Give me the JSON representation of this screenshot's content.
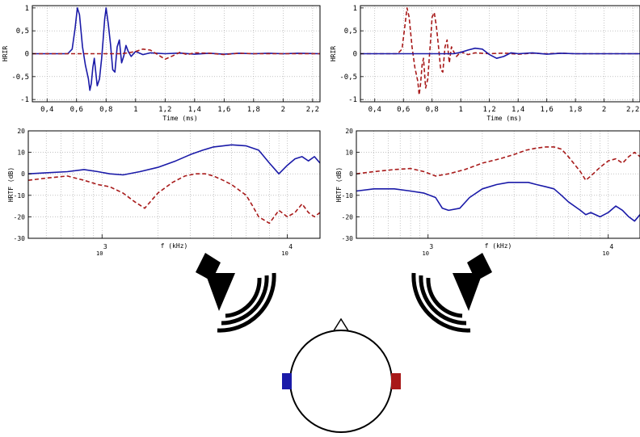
{
  "figure": {
    "colors": {
      "left_ear": "#1a1aa8",
      "right_ear": "#a81a1a",
      "axis": "#000000",
      "grid": "#a0a0a0"
    },
    "icons": [
      "speaker-left-icon",
      "speaker-right-icon",
      "sound-waves-icon",
      "head-icon",
      "nose-icon",
      "left-ear-marker",
      "right-ear-marker"
    ]
  },
  "chart_data": [
    {
      "id": "hrir-left-speaker",
      "type": "line",
      "xlabel": "Time (ms)",
      "ylabel": "HRIR",
      "xlim": [
        0.3,
        2.25
      ],
      "ylim": [
        -1.05,
        1.05
      ],
      "xticks": [
        "0,4",
        "0,6",
        "0,8",
        "1",
        "1,2",
        "1,4",
        "1,6",
        "1,8",
        "2",
        "2,2"
      ],
      "yticks": [
        "1",
        "0,5",
        "0",
        "-0,5",
        "-1"
      ],
      "grid": true,
      "series": [
        {
          "ear": "left",
          "color": "#1a1aa8",
          "dash": "none",
          "x": [
            0.3,
            0.54,
            0.57,
            0.59,
            0.605,
            0.62,
            0.64,
            0.66,
            0.68,
            0.69,
            0.7,
            0.71,
            0.72,
            0.74,
            0.755,
            0.77,
            0.78,
            0.79,
            0.8,
            0.815,
            0.83,
            0.845,
            0.86,
            0.875,
            0.89,
            0.905,
            0.92,
            0.935,
            0.95,
            0.97,
            1.0,
            1.05,
            1.1,
            1.2,
            1.3,
            1.4,
            1.5,
            1.6,
            1.7,
            1.8,
            1.9,
            2.0,
            2.1,
            2.25
          ],
          "y": [
            0,
            0,
            0.1,
            0.55,
            1.0,
            0.85,
            0.15,
            -0.25,
            -0.55,
            -0.8,
            -0.65,
            -0.3,
            -0.1,
            -0.7,
            -0.55,
            -0.1,
            0.3,
            0.75,
            1.0,
            0.65,
            0.2,
            -0.35,
            -0.4,
            0.15,
            0.3,
            -0.2,
            -0.05,
            0.18,
            0.05,
            -0.06,
            0.05,
            -0.02,
            0.02,
            0.0,
            0.015,
            -0.01,
            0.01,
            -0.01,
            0.01,
            0.0,
            0.01,
            0.0,
            0.01,
            0.0
          ]
        },
        {
          "ear": "right",
          "color": "#a81a1a",
          "dash": "dashed",
          "x": [
            0.3,
            0.9,
            0.95,
            1.0,
            1.05,
            1.1,
            1.15,
            1.2,
            1.25,
            1.3,
            1.35,
            1.4,
            1.5,
            1.6,
            1.7,
            1.8,
            2.0,
            2.25
          ],
          "y": [
            0,
            0,
            0.02,
            0.05,
            0.1,
            0.08,
            -0.02,
            -0.12,
            -0.05,
            0.03,
            -0.02,
            0.02,
            0.01,
            -0.02,
            0.01,
            0.0,
            0.0,
            0.0
          ]
        }
      ]
    },
    {
      "id": "hrir-right-speaker",
      "type": "line",
      "xlabel": "Time (ms)",
      "ylabel": "HRIR",
      "xlim": [
        0.3,
        2.25
      ],
      "ylim": [
        -1.05,
        1.05
      ],
      "xticks": [
        "0,4",
        "0,6",
        "0,8",
        "1",
        "1,2",
        "1,4",
        "1,6",
        "1,8",
        "2",
        "2,2"
      ],
      "yticks": [
        "1",
        "0,5",
        "0",
        "-0,5",
        "-1"
      ],
      "grid": true,
      "series": [
        {
          "ear": "right",
          "color": "#a81a1a",
          "dash": "dashed",
          "x": [
            0.3,
            0.56,
            0.59,
            0.61,
            0.625,
            0.64,
            0.66,
            0.68,
            0.7,
            0.71,
            0.72,
            0.73,
            0.74,
            0.755,
            0.77,
            0.78,
            0.79,
            0.8,
            0.815,
            0.83,
            0.845,
            0.86,
            0.875,
            0.89,
            0.905,
            0.92,
            0.935,
            0.95,
            0.97,
            1.0,
            1.05,
            1.1,
            1.2,
            1.3,
            1.4,
            1.5,
            1.6,
            1.7,
            1.8,
            2.0,
            2.25
          ],
          "y": [
            0,
            0,
            0.1,
            0.6,
            1.0,
            0.8,
            0.15,
            -0.3,
            -0.6,
            -0.9,
            -0.65,
            -0.25,
            -0.1,
            -0.75,
            -0.55,
            -0.1,
            0.3,
            0.8,
            0.9,
            0.6,
            0.15,
            -0.35,
            -0.4,
            0.15,
            0.3,
            -0.2,
            0.15,
            0.05,
            -0.06,
            0.04,
            -0.02,
            0.02,
            0.0,
            0.015,
            -0.01,
            0.01,
            0.0,
            0.01,
            0.0,
            0.0,
            0.0
          ]
        },
        {
          "ear": "left",
          "color": "#1a1aa8",
          "dash": "none",
          "x": [
            0.3,
            0.95,
            1.0,
            1.05,
            1.1,
            1.15,
            1.2,
            1.25,
            1.3,
            1.35,
            1.4,
            1.5,
            1.6,
            1.7,
            1.8,
            2.0,
            2.25
          ],
          "y": [
            0,
            0,
            0.03,
            0.08,
            0.12,
            0.1,
            -0.02,
            -0.1,
            -0.06,
            0.02,
            0.0,
            0.02,
            -0.01,
            0.01,
            0.0,
            0.0,
            0.0
          ]
        }
      ]
    },
    {
      "id": "hrtf-left-speaker",
      "type": "line",
      "xlabel": "f (kHz)",
      "ylabel": "HRTF (dB)",
      "xscale": "log",
      "xlim": [
        400,
        15000
      ],
      "ylim": [
        -30,
        20
      ],
      "xticks": [
        {
          "value": 1000,
          "base": "10",
          "exp": "3"
        },
        {
          "value": 10000,
          "base": "10",
          "exp": "4"
        }
      ],
      "yticks": [
        "20",
        "10",
        "0",
        "-10",
        "-20",
        "-30"
      ],
      "grid": true,
      "series": [
        {
          "ear": "left",
          "color": "#1a1aa8",
          "dash": "none",
          "x": [
            400,
            500,
            650,
            800,
            950,
            1100,
            1300,
            1600,
            2000,
            2500,
            3000,
            3500,
            4000,
            4500,
            5000,
            6000,
            7000,
            8000,
            9000,
            10000,
            11000,
            12000,
            13000,
            14000,
            15000
          ],
          "y": [
            0,
            0.5,
            1,
            2,
            1,
            0,
            -0.5,
            1,
            3,
            6,
            9,
            11,
            12.5,
            13,
            13.5,
            13,
            11,
            5,
            0,
            4,
            7,
            8,
            6,
            8,
            5
          ]
        },
        {
          "ear": "right",
          "color": "#a81a1a",
          "dash": "dashed",
          "x": [
            400,
            500,
            650,
            800,
            950,
            1100,
            1300,
            1500,
            1700,
            2000,
            2400,
            2800,
            3200,
            3600,
            4000,
            4500,
            5000,
            6000,
            6500,
            7000,
            8000,
            9000,
            10000,
            11000,
            12000,
            13000,
            14000,
            15000
          ],
          "y": [
            -3,
            -2,
            -1,
            -3,
            -5,
            -6,
            -9,
            -13,
            -16,
            -9,
            -4,
            -1,
            0,
            0,
            -1,
            -3,
            -5,
            -10,
            -15,
            -20,
            -23,
            -17,
            -20,
            -18,
            -14,
            -18,
            -20,
            -18
          ]
        }
      ]
    },
    {
      "id": "hrtf-right-speaker",
      "type": "line",
      "xlabel": "f (kHz)",
      "ylabel": "HRTF (dB)",
      "xscale": "log",
      "xlim": [
        400,
        15000
      ],
      "ylim": [
        -30,
        20
      ],
      "xticks": [
        {
          "value": 1000,
          "base": "10",
          "exp": "3"
        },
        {
          "value": 10000,
          "base": "10",
          "exp": "4"
        }
      ],
      "yticks": [
        "20",
        "10",
        "0",
        "-10",
        "-20",
        "-30"
      ],
      "grid": true,
      "series": [
        {
          "ear": "right",
          "color": "#a81a1a",
          "dash": "dashed",
          "x": [
            400,
            500,
            650,
            800,
            950,
            1100,
            1300,
            1600,
            2000,
            2500,
            3000,
            3500,
            4000,
            4500,
            5000,
            5500,
            6000,
            7000,
            7500,
            8000,
            9000,
            10000,
            11000,
            12000,
            13000,
            14000,
            15000
          ],
          "y": [
            0,
            1,
            2,
            2.5,
            1,
            -1,
            0,
            2,
            5,
            7,
            9,
            11,
            12,
            12.5,
            12.5,
            11.5,
            8,
            1,
            -3,
            -1,
            3,
            6,
            7,
            5,
            8,
            10,
            8
          ]
        },
        {
          "ear": "left",
          "color": "#1a1aa8",
          "dash": "none",
          "x": [
            400,
            500,
            650,
            800,
            950,
            1100,
            1200,
            1300,
            1500,
            1700,
            2000,
            2400,
            2800,
            3200,
            3600,
            4000,
            4500,
            5000,
            5500,
            6000,
            7000,
            7500,
            8000,
            9000,
            10000,
            11000,
            12000,
            13000,
            14000,
            15000
          ],
          "y": [
            -8,
            -7,
            -7,
            -8,
            -9,
            -11,
            -16,
            -17,
            -16,
            -11,
            -7,
            -5,
            -4,
            -4,
            -4,
            -5,
            -6,
            -7,
            -10,
            -13,
            -17,
            -19,
            -18,
            -20,
            -18,
            -15,
            -17,
            -20,
            -22,
            -19
          ]
        }
      ]
    }
  ]
}
